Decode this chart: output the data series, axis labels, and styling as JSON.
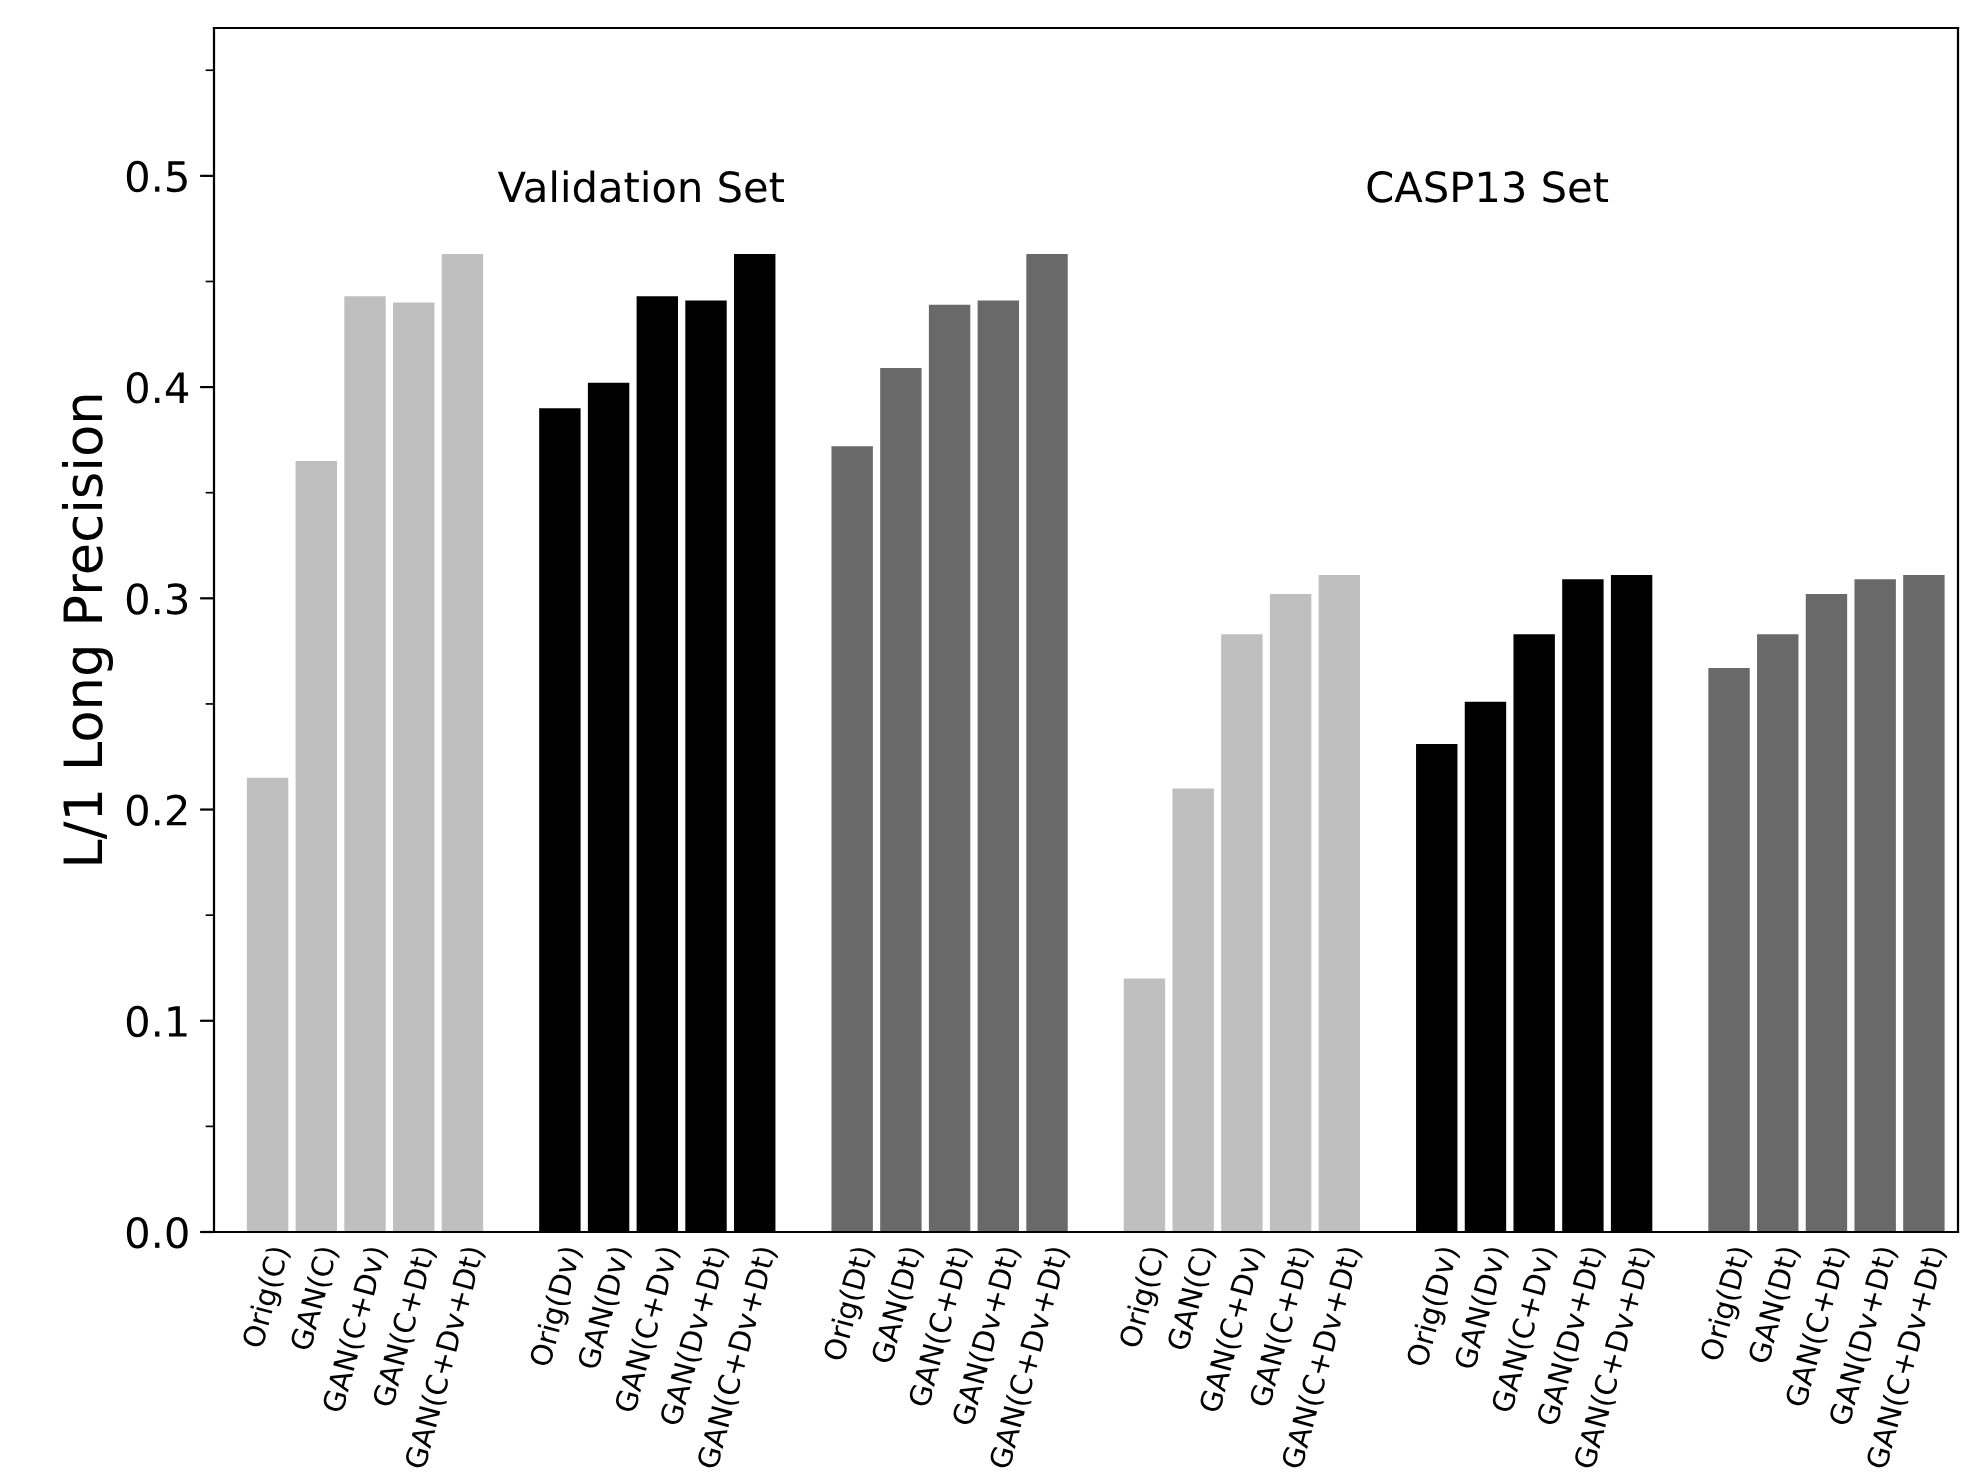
{
  "chart_data": {
    "type": "bar",
    "categories": [
      "Orig(C)",
      "GAN(C)",
      "GAN(C+Dv)",
      "GAN(C+Dt)",
      "GAN(C+Dv+Dt)",
      null,
      "Orig(Dv)",
      "GAN(Dv)",
      "GAN(C+Dv)",
      "GAN(Dv+Dt)",
      "GAN(C+Dv+Dt)",
      null,
      "Orig(Dt)",
      "GAN(Dt)",
      "GAN(C+Dt)",
      "GAN(Dv+Dt)",
      "GAN(C+Dv+Dt)",
      null,
      "Orig(C)",
      "GAN(C)",
      "GAN(C+Dv)",
      "GAN(C+Dt)",
      "GAN(C+Dv+Dt)",
      null,
      "Orig(Dv)",
      "GAN(Dv)",
      "GAN(C+Dv)",
      "GAN(Dv+Dt)",
      "GAN(C+Dv+Dt)",
      null,
      "Orig(Dt)",
      "GAN(Dt)",
      "GAN(C+Dt)",
      "GAN(Dv+Dt)",
      "GAN(C+Dv+Dt)"
    ],
    "values": [
      0.215,
      0.365,
      0.443,
      0.44,
      0.463,
      null,
      0.39,
      0.402,
      0.443,
      0.441,
      0.463,
      null,
      0.372,
      0.409,
      0.439,
      0.441,
      0.463,
      null,
      0.12,
      0.21,
      0.283,
      0.302,
      0.311,
      null,
      0.231,
      0.251,
      0.283,
      0.309,
      0.311,
      null,
      0.267,
      0.283,
      0.302,
      0.309,
      0.311
    ],
    "colors": [
      "#bfbfbf",
      "#bfbfbf",
      "#bfbfbf",
      "#bfbfbf",
      "#bfbfbf",
      null,
      "#000000",
      "#000000",
      "#000000",
      "#000000",
      "#000000",
      null,
      "#696969",
      "#696969",
      "#696969",
      "#696969",
      "#696969",
      null,
      "#bfbfbf",
      "#bfbfbf",
      "#bfbfbf",
      "#bfbfbf",
      "#bfbfbf",
      null,
      "#000000",
      "#000000",
      "#000000",
      "#000000",
      "#000000",
      null,
      "#696969",
      "#696969",
      "#696969",
      "#696969",
      "#696969"
    ],
    "ylabel": "L/1 Long Precision",
    "annotations": [
      "Validation Set",
      "CASP13 Set"
    ],
    "ylim": [
      0,
      0.57
    ],
    "yticks": [
      {
        "value": 0,
        "label": "0.0"
      },
      {
        "value": 0.05,
        "label": null
      },
      0.1,
      {
        "value": 0.15,
        "label": null
      },
      0.2,
      {
        "value": 0.25,
        "label": null
      },
      0.3,
      {
        "value": 0.35,
        "label": null
      },
      0.4,
      {
        "value": 0.45,
        "label": null
      },
      0.5,
      {
        "value": 0.55,
        "label": null
      }
    ],
    "grid": false,
    "legend": false
  }
}
